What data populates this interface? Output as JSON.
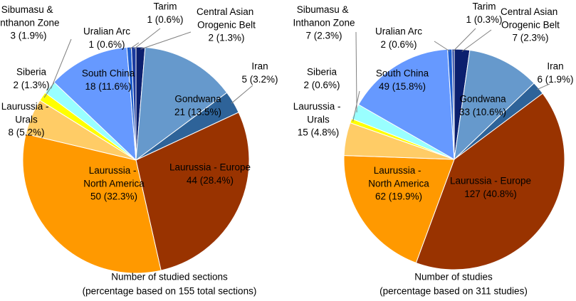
{
  "chart_data": [
    {
      "type": "pie",
      "categories": [
        "Central Asian Orogenic Belt",
        "Gondwana",
        "Iran",
        "Laurussia - Europe",
        "Laurussia - North America",
        "Laurussia - Urals",
        "Siberia",
        "Sibumasu & Inthanon Zone",
        "South China",
        "Uralian Arc",
        "Tarim"
      ],
      "values": [
        2,
        21,
        5,
        44,
        50,
        8,
        2,
        3,
        18,
        1,
        1
      ],
      "value_labels": [
        "2 (1.3%)",
        "21 (13.5%)",
        "5 (3.2%)",
        "44 (28.4%)",
        "50 (32.3%)",
        "8 (5.2%)",
        "2 (1.3%)",
        "3 (1.9%)",
        "18 (11.6%)",
        "1 (0.6%)",
        "1 (0.6%)"
      ],
      "colors": [
        "#0b1f6e",
        "#6699cc",
        "#2e6399",
        "#993300",
        "#ff9900",
        "#ffcc66",
        "#ffff00",
        "#99ffff",
        "#6699ff",
        "#1f5fd0",
        "#1a3a9f"
      ],
      "caption": [
        "Number of studied sections",
        "(percentage based on 155 total sections)"
      ]
    },
    {
      "type": "pie",
      "categories": [
        "Central Asian Orogenic Belt",
        "Gondwana",
        "Iran",
        "Laurussia - Europe",
        "Laurussia - North America",
        "Laurussia - Urals",
        "Siberia",
        "Sibumasu & Inthanon Zone",
        "South China",
        "Uralian Arc",
        "Tarim"
      ],
      "values": [
        7,
        33,
        6,
        127,
        62,
        15,
        2,
        7,
        49,
        2,
        1
      ],
      "value_labels": [
        "7 (2.3%)",
        "33 (10.6%)",
        "6 (1.9%)",
        "127 (40.8%)",
        "62 (19.9%)",
        "15 (4.8%)",
        "2 (0.6%)",
        "7 (2.3%)",
        "49 (15.8%)",
        "2 (0.6%)",
        "1 (0.3%)"
      ],
      "colors": [
        "#0b1f6e",
        "#6699cc",
        "#2e6399",
        "#993300",
        "#ff9900",
        "#ffcc66",
        "#ffff00",
        "#99ffff",
        "#6699ff",
        "#1f5fd0",
        "#1a3a9f"
      ],
      "caption": [
        "Number of studies",
        "(percentage based on 311 studies)"
      ]
    }
  ]
}
